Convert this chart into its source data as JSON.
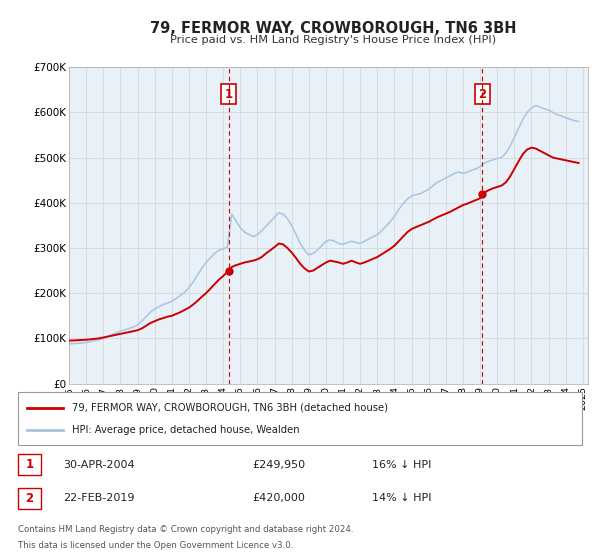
{
  "title": "79, FERMOR WAY, CROWBOROUGH, TN6 3BH",
  "subtitle": "Price paid vs. HM Land Registry's House Price Index (HPI)",
  "hpi_color": "#aac4e0",
  "price_color": "#cc0000",
  "background_color": "#ffffff",
  "grid_color": "#d8d8d8",
  "plot_bg_color": "#e8f0f8",
  "ylim": [
    0,
    700000
  ],
  "yticks": [
    0,
    100000,
    200000,
    300000,
    400000,
    500000,
    600000,
    700000
  ],
  "ytick_labels": [
    "£0",
    "£100K",
    "£200K",
    "£300K",
    "£400K",
    "£500K",
    "£600K",
    "£700K"
  ],
  "xlim_start": 1995.0,
  "xlim_end": 2025.3,
  "marker1_x": 2004.33,
  "marker1_y": 249950,
  "marker2_x": 2019.13,
  "marker2_y": 420000,
  "vline1_x": 2004.33,
  "vline2_x": 2019.13,
  "legend1_label": "79, FERMOR WAY, CROWBOROUGH, TN6 3BH (detached house)",
  "legend2_label": "HPI: Average price, detached house, Wealden",
  "table_row1": [
    "1",
    "30-APR-2004",
    "£249,950",
    "16% ↓ HPI"
  ],
  "table_row2": [
    "2",
    "22-FEB-2019",
    "£420,000",
    "14% ↓ HPI"
  ],
  "footnote1": "Contains HM Land Registry data © Crown copyright and database right 2024.",
  "footnote2": "This data is licensed under the Open Government Licence v3.0.",
  "hpi_data_x": [
    1995.0,
    1995.25,
    1995.5,
    1995.75,
    1996.0,
    1996.25,
    1996.5,
    1996.75,
    1997.0,
    1997.25,
    1997.5,
    1997.75,
    1998.0,
    1998.25,
    1998.5,
    1998.75,
    1999.0,
    1999.25,
    1999.5,
    1999.75,
    2000.0,
    2000.25,
    2000.5,
    2000.75,
    2001.0,
    2001.25,
    2001.5,
    2001.75,
    2002.0,
    2002.25,
    2002.5,
    2002.75,
    2003.0,
    2003.25,
    2003.5,
    2003.75,
    2004.0,
    2004.25,
    2004.5,
    2004.75,
    2005.0,
    2005.25,
    2005.5,
    2005.75,
    2006.0,
    2006.25,
    2006.5,
    2006.75,
    2007.0,
    2007.25,
    2007.5,
    2007.75,
    2008.0,
    2008.25,
    2008.5,
    2008.75,
    2009.0,
    2009.25,
    2009.5,
    2009.75,
    2010.0,
    2010.25,
    2010.5,
    2010.75,
    2011.0,
    2011.25,
    2011.5,
    2011.75,
    2012.0,
    2012.25,
    2012.5,
    2012.75,
    2013.0,
    2013.25,
    2013.5,
    2013.75,
    2014.0,
    2014.25,
    2014.5,
    2014.75,
    2015.0,
    2015.25,
    2015.5,
    2015.75,
    2016.0,
    2016.25,
    2016.5,
    2016.75,
    2017.0,
    2017.25,
    2017.5,
    2017.75,
    2018.0,
    2018.25,
    2018.5,
    2018.75,
    2019.0,
    2019.25,
    2019.5,
    2019.75,
    2020.0,
    2020.25,
    2020.5,
    2020.75,
    2021.0,
    2021.25,
    2021.5,
    2021.75,
    2022.0,
    2022.25,
    2022.5,
    2022.75,
    2023.0,
    2023.25,
    2023.5,
    2023.75,
    2024.0,
    2024.25,
    2024.5,
    2024.75
  ],
  "hpi_data_y": [
    88000,
    88500,
    89000,
    90000,
    91000,
    93000,
    95000,
    97000,
    100000,
    104000,
    108000,
    112000,
    116000,
    119000,
    122000,
    125000,
    130000,
    138000,
    148000,
    158000,
    165000,
    170000,
    175000,
    178000,
    182000,
    188000,
    195000,
    202000,
    212000,
    225000,
    240000,
    255000,
    268000,
    278000,
    288000,
    295000,
    298000,
    302000,
    375000,
    360000,
    345000,
    335000,
    330000,
    325000,
    330000,
    338000,
    348000,
    358000,
    368000,
    378000,
    375000,
    365000,
    350000,
    330000,
    310000,
    295000,
    285000,
    288000,
    295000,
    305000,
    315000,
    318000,
    315000,
    310000,
    308000,
    312000,
    315000,
    312000,
    310000,
    315000,
    320000,
    325000,
    330000,
    338000,
    348000,
    358000,
    370000,
    385000,
    398000,
    408000,
    415000,
    418000,
    420000,
    425000,
    430000,
    438000,
    445000,
    450000,
    455000,
    460000,
    465000,
    468000,
    465000,
    468000,
    472000,
    475000,
    480000,
    488000,
    492000,
    495000,
    498000,
    500000,
    510000,
    525000,
    545000,
    565000,
    585000,
    600000,
    610000,
    615000,
    612000,
    608000,
    605000,
    600000,
    595000,
    592000,
    588000,
    585000,
    582000,
    580000
  ],
  "price_data_x": [
    1995.0,
    1995.25,
    1995.5,
    1995.75,
    1996.0,
    1996.25,
    1996.5,
    1996.75,
    1997.0,
    1997.25,
    1997.5,
    1997.75,
    1998.0,
    1998.25,
    1998.5,
    1998.75,
    1999.0,
    1999.25,
    1999.5,
    1999.75,
    2000.0,
    2000.25,
    2000.5,
    2000.75,
    2001.0,
    2001.25,
    2001.5,
    2001.75,
    2002.0,
    2002.25,
    2002.5,
    2002.75,
    2003.0,
    2003.25,
    2003.5,
    2003.75,
    2004.0,
    2004.33,
    2004.5,
    2004.75,
    2005.0,
    2005.25,
    2005.5,
    2005.75,
    2006.0,
    2006.25,
    2006.5,
    2006.75,
    2007.0,
    2007.25,
    2007.5,
    2007.75,
    2008.0,
    2008.25,
    2008.5,
    2008.75,
    2009.0,
    2009.25,
    2009.5,
    2009.75,
    2010.0,
    2010.25,
    2010.5,
    2010.75,
    2011.0,
    2011.25,
    2011.5,
    2011.75,
    2012.0,
    2012.25,
    2012.5,
    2012.75,
    2013.0,
    2013.25,
    2013.5,
    2013.75,
    2014.0,
    2014.25,
    2014.5,
    2014.75,
    2015.0,
    2015.25,
    2015.5,
    2015.75,
    2016.0,
    2016.25,
    2016.5,
    2016.75,
    2017.0,
    2017.25,
    2017.5,
    2017.75,
    2018.0,
    2018.25,
    2018.5,
    2018.75,
    2019.0,
    2019.13,
    2019.5,
    2019.75,
    2020.0,
    2020.25,
    2020.5,
    2020.75,
    2021.0,
    2021.25,
    2021.5,
    2021.75,
    2022.0,
    2022.25,
    2022.5,
    2022.75,
    2023.0,
    2023.25,
    2023.5,
    2023.75,
    2024.0,
    2024.25,
    2024.5,
    2024.75
  ],
  "price_data_y": [
    95000,
    95500,
    96000,
    96500,
    97000,
    98000,
    99000,
    100000,
    102000,
    104000,
    106000,
    108000,
    110000,
    112000,
    114000,
    116000,
    118000,
    122000,
    128000,
    134000,
    138000,
    142000,
    145000,
    148000,
    150000,
    154000,
    158000,
    163000,
    168000,
    175000,
    183000,
    192000,
    200000,
    210000,
    220000,
    230000,
    238000,
    249950,
    258000,
    262000,
    265000,
    268000,
    270000,
    272000,
    275000,
    280000,
    288000,
    295000,
    302000,
    310000,
    308000,
    300000,
    290000,
    278000,
    265000,
    255000,
    248000,
    250000,
    256000,
    262000,
    268000,
    272000,
    270000,
    268000,
    265000,
    268000,
    272000,
    268000,
    265000,
    268000,
    272000,
    276000,
    280000,
    286000,
    292000,
    298000,
    305000,
    315000,
    325000,
    335000,
    342000,
    346000,
    350000,
    354000,
    358000,
    363000,
    368000,
    372000,
    376000,
    380000,
    385000,
    390000,
    395000,
    398000,
    402000,
    406000,
    410000,
    420000,
    428000,
    432000,
    435000,
    438000,
    445000,
    458000,
    475000,
    492000,
    508000,
    518000,
    522000,
    520000,
    515000,
    510000,
    505000,
    500000,
    498000,
    496000,
    494000,
    492000,
    490000,
    488000
  ]
}
